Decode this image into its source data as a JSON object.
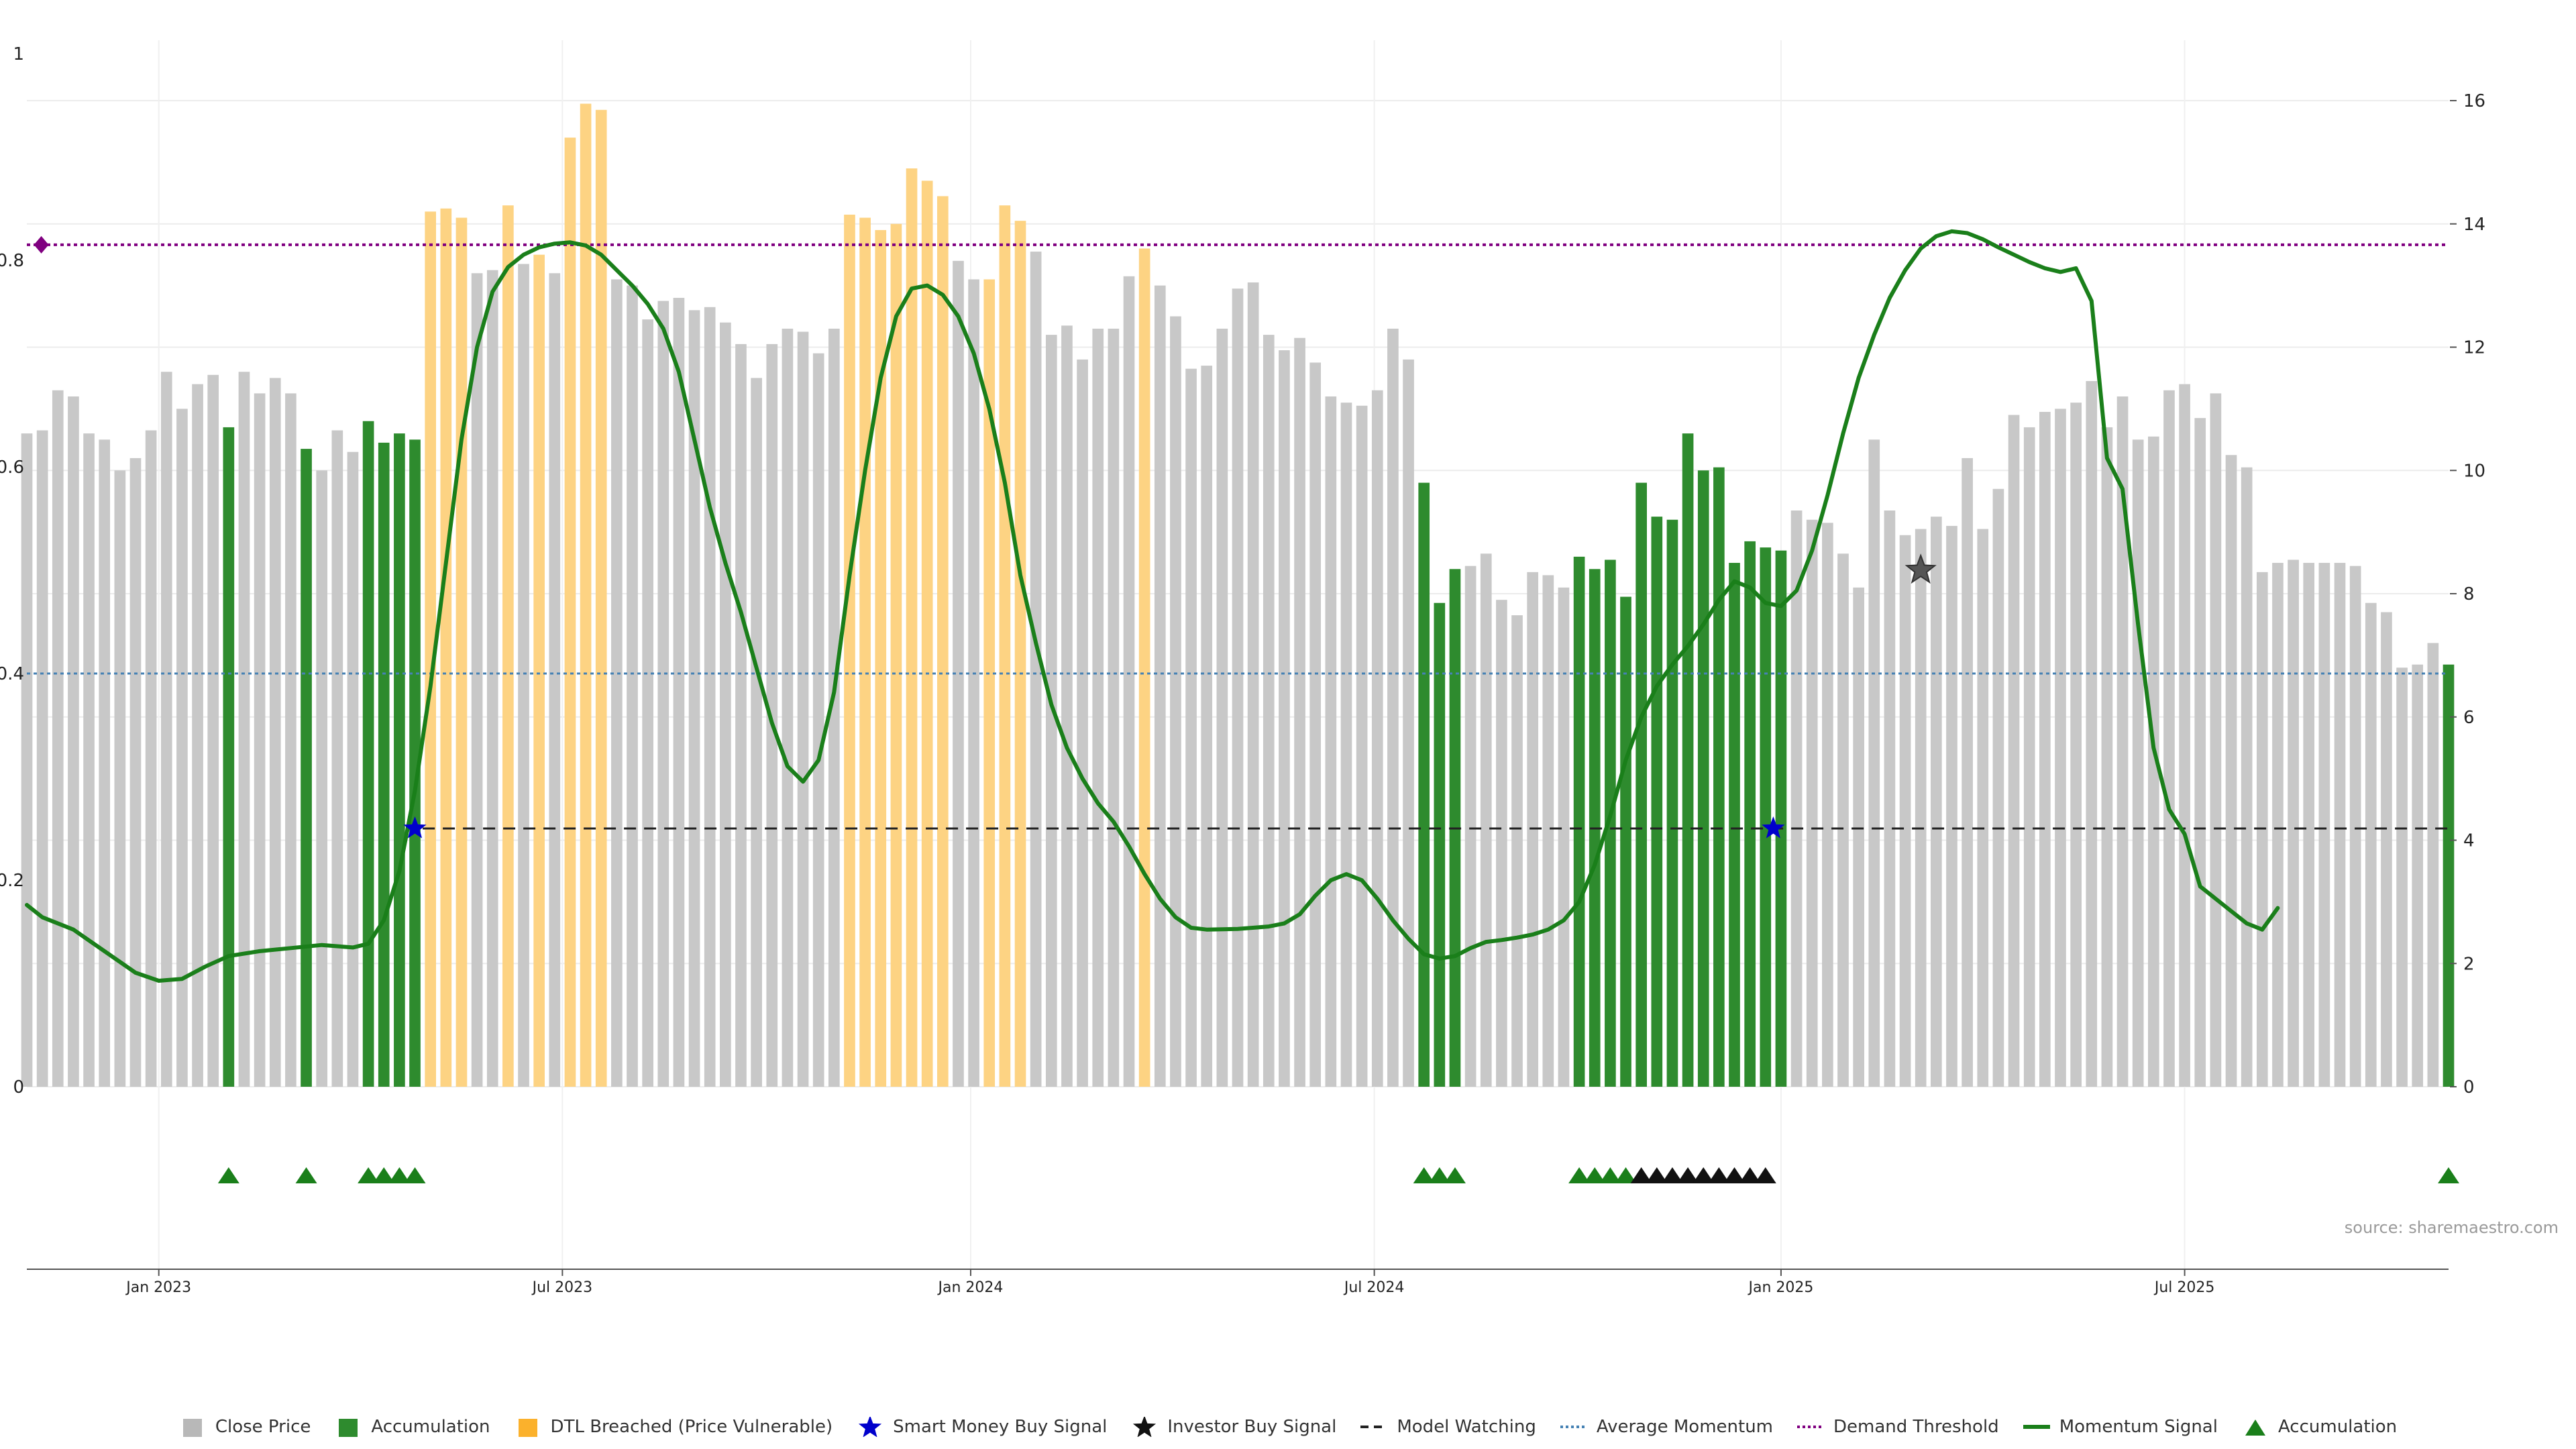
{
  "chart_data": {
    "type": "bar",
    "source": "source: sharemaestro.com",
    "left_axis": {
      "ylim": [
        0,
        1
      ],
      "ticks": [
        "0",
        "0.2",
        "0.4",
        "0.6",
        "0.8",
        "1"
      ]
    },
    "right_axis": {
      "ylim": [
        0,
        16
      ],
      "ticks": [
        "0",
        "2",
        "4",
        "6",
        "8",
        "10",
        "12",
        "14",
        "16"
      ]
    },
    "x_ticks": [
      {
        "label": "Jan 2023",
        "index": 8.5
      },
      {
        "label": "Jul 2023",
        "index": 34.5
      },
      {
        "label": "Jan 2024",
        "index": 60.8
      },
      {
        "label": "Jul 2024",
        "index": 86.8
      },
      {
        "label": "Jan 2025",
        "index": 113
      },
      {
        "label": "Jul 2025",
        "index": 139
      }
    ],
    "colors": {
      "close": "#c8c8c8",
      "accumulation": "#2e8b2e",
      "dtl": "#fdd383",
      "momentum": "#1a7f1a",
      "demand": "#800080",
      "average": "#4682b4",
      "model": "#222222",
      "smart_money": "#0000cc",
      "investor": "#111111",
      "marker": "#1a7f1a"
    },
    "close_prices": [
      10.6,
      10.65,
      11.3,
      11.2,
      10.6,
      10.5,
      10.0,
      10.2,
      10.65,
      11.6,
      11.0,
      11.4,
      11.55,
      10.7,
      11.6,
      11.25,
      11.5,
      11.25,
      10.35,
      10.0,
      10.65,
      10.3,
      10.8,
      10.45,
      10.6,
      10.5,
      14.2,
      14.25,
      14.1,
      13.2,
      13.25,
      14.3,
      13.35,
      13.5,
      13.2,
      15.4,
      15.95,
      15.85,
      13.1,
      13.0,
      12.45,
      12.75,
      12.8,
      12.6,
      12.65,
      12.4,
      12.05,
      11.5,
      12.05,
      12.3,
      12.25,
      11.9,
      12.3,
      14.15,
      14.1,
      13.9,
      14.0,
      14.9,
      14.7,
      14.45,
      13.4,
      13.1,
      13.1,
      14.3,
      14.05,
      13.55,
      12.2,
      12.35,
      11.8,
      12.3,
      12.3,
      13.15,
      13.6,
      13.0,
      12.5,
      11.65,
      11.7,
      12.3,
      12.95,
      13.05,
      12.2,
      11.95,
      12.15,
      11.75,
      11.2,
      11.1,
      11.05,
      11.3,
      12.3,
      11.8,
      9.8,
      7.85,
      8.4,
      8.45,
      8.65,
      7.9,
      7.65,
      8.35,
      8.3,
      8.1,
      8.6,
      8.4,
      8.55,
      7.95,
      9.8,
      9.25,
      9.2,
      10.6,
      10.0,
      10.05,
      8.5,
      8.85,
      8.75,
      8.7,
      9.35,
      9.2,
      9.15,
      8.65,
      8.1,
      10.5,
      9.35,
      8.95,
      9.05,
      9.25,
      9.1,
      10.2,
      9.05,
      9.7,
      10.9,
      10.7,
      10.95,
      11.0,
      11.1,
      11.45,
      10.7,
      11.2,
      10.5,
      10.55,
      11.3,
      11.4,
      10.85,
      11.25,
      10.25,
      10.05,
      8.35,
      8.5,
      8.55,
      8.5,
      8.5,
      8.5,
      8.45,
      7.85,
      7.7,
      6.8,
      6.85,
      7.2,
      6.85
    ],
    "bar_types": [
      "c",
      "c",
      "c",
      "c",
      "c",
      "c",
      "c",
      "c",
      "c",
      "c",
      "c",
      "c",
      "c",
      "a",
      "c",
      "c",
      "c",
      "c",
      "a",
      "c",
      "c",
      "c",
      "a",
      "a",
      "a",
      "a",
      "d",
      "d",
      "d",
      "c",
      "c",
      "d",
      "c",
      "d",
      "c",
      "d",
      "d",
      "d",
      "c",
      "c",
      "c",
      "c",
      "c",
      "c",
      "c",
      "c",
      "c",
      "c",
      "c",
      "c",
      "c",
      "c",
      "c",
      "d",
      "d",
      "d",
      "d",
      "d",
      "d",
      "d",
      "c",
      "c",
      "d",
      "d",
      "d",
      "c",
      "c",
      "c",
      "c",
      "c",
      "c",
      "c",
      "d",
      "c",
      "c",
      "c",
      "c",
      "c",
      "c",
      "c",
      "c",
      "c",
      "c",
      "c",
      "c",
      "c",
      "c",
      "c",
      "c",
      "c",
      "a",
      "a",
      "a",
      "c",
      "c",
      "c",
      "c",
      "c",
      "c",
      "c",
      "a",
      "a",
      "a",
      "a",
      "a",
      "a",
      "a",
      "a",
      "a",
      "a",
      "a",
      "a",
      "a",
      "a",
      "c",
      "c",
      "c",
      "c",
      "c",
      "c",
      "c",
      "c",
      "c",
      "c",
      "c",
      "c",
      "c",
      "c",
      "c",
      "c",
      "c",
      "c",
      "c",
      "c",
      "c",
      "c",
      "c",
      "c",
      "c",
      "c",
      "c",
      "c",
      "c",
      "c",
      "c",
      "c",
      "c",
      "c",
      "c",
      "c",
      "c",
      "c",
      "c",
      "c",
      "c",
      "c",
      "a"
    ],
    "momentum": [
      [
        0,
        2.95
      ],
      [
        1,
        2.75
      ],
      [
        3,
        2.55
      ],
      [
        5,
        2.2
      ],
      [
        7,
        1.85
      ],
      [
        8.5,
        1.72
      ],
      [
        10,
        1.75
      ],
      [
        11.5,
        1.95
      ],
      [
        13,
        2.12
      ],
      [
        15,
        2.2
      ],
      [
        17,
        2.25
      ],
      [
        19,
        2.3
      ],
      [
        21,
        2.26
      ],
      [
        22,
        2.32
      ],
      [
        23,
        2.7
      ],
      [
        24,
        3.5
      ],
      [
        25,
        4.8
      ],
      [
        26,
        6.5
      ],
      [
        27,
        8.5
      ],
      [
        28,
        10.5
      ],
      [
        29,
        12.0
      ],
      [
        30,
        12.9
      ],
      [
        31,
        13.3
      ],
      [
        32,
        13.5
      ],
      [
        33,
        13.62
      ],
      [
        34,
        13.68
      ],
      [
        35,
        13.7
      ],
      [
        36,
        13.65
      ],
      [
        37,
        13.5
      ],
      [
        38,
        13.25
      ],
      [
        39,
        13.0
      ],
      [
        40,
        12.7
      ],
      [
        41,
        12.3
      ],
      [
        42,
        11.6
      ],
      [
        43,
        10.5
      ],
      [
        44,
        9.4
      ],
      [
        45,
        8.5
      ],
      [
        46,
        7.7
      ],
      [
        47,
        6.8
      ],
      [
        48,
        5.9
      ],
      [
        49,
        5.2
      ],
      [
        50,
        4.95
      ],
      [
        51,
        5.3
      ],
      [
        52,
        6.4
      ],
      [
        53,
        8.3
      ],
      [
        54,
        10.0
      ],
      [
        55,
        11.5
      ],
      [
        56,
        12.5
      ],
      [
        57,
        12.95
      ],
      [
        58,
        13.0
      ],
      [
        59,
        12.85
      ],
      [
        60,
        12.5
      ],
      [
        61,
        11.9
      ],
      [
        62,
        11.0
      ],
      [
        63,
        9.8
      ],
      [
        64,
        8.3
      ],
      [
        65,
        7.2
      ],
      [
        66,
        6.2
      ],
      [
        67,
        5.5
      ],
      [
        68,
        5.0
      ],
      [
        69,
        4.6
      ],
      [
        70,
        4.3
      ],
      [
        71,
        3.9
      ],
      [
        72,
        3.45
      ],
      [
        73,
        3.05
      ],
      [
        74,
        2.75
      ],
      [
        75,
        2.58
      ],
      [
        76,
        2.55
      ],
      [
        78,
        2.56
      ],
      [
        80,
        2.6
      ],
      [
        81,
        2.65
      ],
      [
        82,
        2.8
      ],
      [
        83,
        3.1
      ],
      [
        84,
        3.35
      ],
      [
        85,
        3.45
      ],
      [
        86,
        3.35
      ],
      [
        87,
        3.05
      ],
      [
        88,
        2.7
      ],
      [
        89,
        2.4
      ],
      [
        90,
        2.15
      ],
      [
        91,
        2.08
      ],
      [
        92,
        2.12
      ],
      [
        93,
        2.25
      ],
      [
        94,
        2.35
      ],
      [
        95,
        2.38
      ],
      [
        96,
        2.42
      ],
      [
        97,
        2.47
      ],
      [
        98,
        2.55
      ],
      [
        99,
        2.7
      ],
      [
        100,
        3.0
      ],
      [
        101,
        3.6
      ],
      [
        102,
        4.4
      ],
      [
        103,
        5.3
      ],
      [
        104,
        6.0
      ],
      [
        105,
        6.5
      ],
      [
        106,
        6.85
      ],
      [
        107,
        7.15
      ],
      [
        108,
        7.5
      ],
      [
        109,
        7.9
      ],
      [
        110,
        8.2
      ],
      [
        111,
        8.1
      ],
      [
        112,
        7.85
      ],
      [
        113,
        7.8
      ],
      [
        114,
        8.05
      ],
      [
        115,
        8.7
      ],
      [
        116,
        9.6
      ],
      [
        117,
        10.6
      ],
      [
        118,
        11.5
      ],
      [
        119,
        12.2
      ],
      [
        120,
        12.8
      ],
      [
        121,
        13.25
      ],
      [
        122,
        13.6
      ],
      [
        123,
        13.8
      ],
      [
        124,
        13.88
      ],
      [
        125,
        13.85
      ],
      [
        126,
        13.75
      ],
      [
        127,
        13.62
      ],
      [
        128,
        13.5
      ],
      [
        129,
        13.38
      ],
      [
        130,
        13.28
      ],
      [
        131,
        13.22
      ],
      [
        132,
        13.28
      ],
      [
        133,
        12.75
      ],
      [
        134,
        10.2
      ],
      [
        135,
        9.7
      ],
      [
        136,
        7.5
      ],
      [
        137,
        5.5
      ],
      [
        138,
        4.5
      ],
      [
        139,
        4.1
      ],
      [
        140,
        3.25
      ],
      [
        141,
        3.05
      ],
      [
        142,
        2.85
      ],
      [
        143,
        2.65
      ],
      [
        144,
        2.55
      ],
      [
        145,
        2.9
      ]
    ],
    "demand_threshold": 0.815,
    "average_momentum": 0.4,
    "model_watching": {
      "value": 0.25,
      "start_index": 25.5,
      "end_index": 156
    },
    "smart_money_signals": [
      {
        "index": 25,
        "value": 0.25
      },
      {
        "index": 112.5,
        "value": 0.25
      }
    ],
    "investor_signals": [
      {
        "index": 122,
        "value": 0.5
      }
    ],
    "demand_marker": {
      "index": 0.5,
      "value": 0.815
    },
    "accumulation_markers": [
      13,
      18,
      22,
      23,
      24,
      25,
      90,
      91,
      92,
      100,
      101,
      102,
      103,
      156
    ],
    "investor_markers": [
      104,
      105,
      106,
      107,
      108,
      109,
      110,
      111,
      112
    ]
  },
  "legend": [
    {
      "label": "Close Price",
      "swatch": "square-grey"
    },
    {
      "label": "Accumulation",
      "swatch": "square-green"
    },
    {
      "label": "DTL Breached (Price Vulnerable)",
      "swatch": "square-orange"
    },
    {
      "label": "Smart Money Buy Signal",
      "swatch": "star-blue"
    },
    {
      "label": "Investor Buy Signal",
      "swatch": "star-black"
    },
    {
      "label": "Model Watching",
      "swatch": "dashed-black"
    },
    {
      "label": "Average Momentum",
      "swatch": "dotted-blue"
    },
    {
      "label": "Demand Threshold",
      "swatch": "dotted-purple"
    },
    {
      "label": "Momentum Signal",
      "swatch": "line-green"
    },
    {
      "label": "Accumulation",
      "swatch": "triangle-green"
    }
  ]
}
